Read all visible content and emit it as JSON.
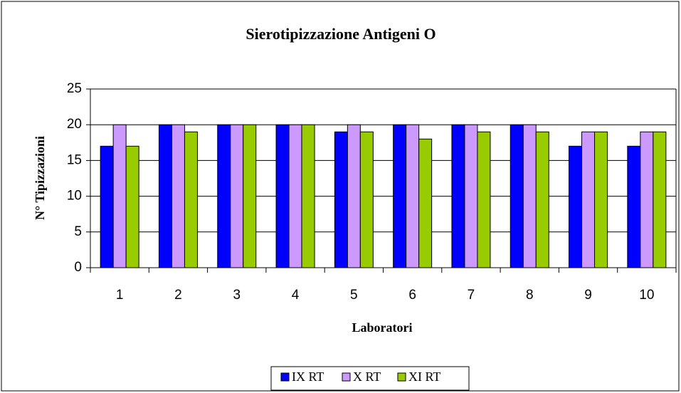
{
  "chart_data": {
    "type": "bar",
    "title": "Sierotipizzazione Antigeni O",
    "x_label": "Laboratori",
    "y_label": "N° Tipizzazioni",
    "categories": [
      "1",
      "2",
      "3",
      "4",
      "5",
      "6",
      "7",
      "8",
      "9",
      "10"
    ],
    "series": [
      {
        "name": "IX RT",
        "color": "#0000ff",
        "values": [
          17,
          20,
          20,
          20,
          19,
          20,
          20,
          20,
          17,
          17
        ]
      },
      {
        "name": "X RT",
        "color": "#cc99ff",
        "values": [
          20,
          20,
          20,
          20,
          20,
          20,
          20,
          20,
          19,
          19
        ]
      },
      {
        "name": "XI RT",
        "color": "#99cc00",
        "values": [
          17,
          19,
          20,
          20,
          19,
          18,
          19,
          19,
          19,
          19
        ]
      }
    ],
    "ylim": [
      0,
      25
    ],
    "yticks": [
      0,
      5,
      10,
      15,
      20,
      25
    ],
    "grid": true,
    "legend": "bottom"
  }
}
